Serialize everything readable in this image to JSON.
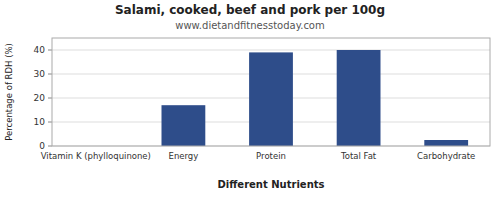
{
  "chart_data": {
    "type": "bar",
    "title": "Salami, cooked, beef and pork per 100g",
    "subtitle": "www.dietandfitnesstoday.com",
    "categories": [
      "Vitamin K (phylloquinone)",
      "Energy",
      "Protein",
      "Total Fat",
      "Carbohydrate"
    ],
    "values": [
      0,
      17,
      39,
      40,
      2.5
    ],
    "color": "#2e4d8a",
    "xlabel": "Different Nutrients",
    "ylabel": "Percentage of RDH (%)",
    "ylim": [
      0,
      45
    ],
    "yticks": [
      0,
      10,
      20,
      30,
      40
    ],
    "grid": true
  }
}
